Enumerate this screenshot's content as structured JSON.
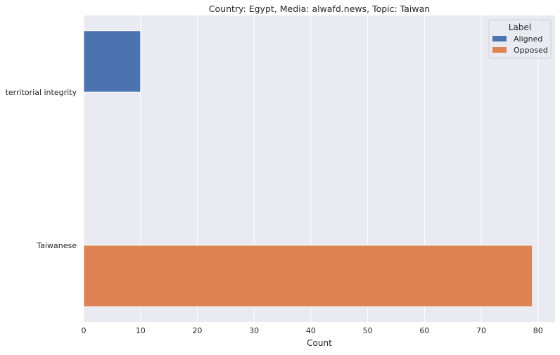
{
  "chart_data": {
    "type": "bar",
    "orientation": "horizontal",
    "title": "Country: Egypt, Media: alwafd.news, Topic: Taiwan",
    "xlabel": "Count",
    "ylabel": "",
    "categories": [
      "territorial integrity",
      "Taiwanese"
    ],
    "series": [
      {
        "name": "Aligned",
        "values": [
          10,
          null
        ],
        "color": "#4c72b0"
      },
      {
        "name": "Opposed",
        "values": [
          null,
          79
        ],
        "color": "#dd8452"
      }
    ],
    "xlim": [
      0,
      83
    ],
    "xticks": [
      0,
      10,
      20,
      30,
      40,
      50,
      60,
      70,
      80
    ],
    "grid": true,
    "background_color": "#eaeaf2",
    "legend": {
      "title": "Label",
      "placement": "top-right"
    }
  }
}
